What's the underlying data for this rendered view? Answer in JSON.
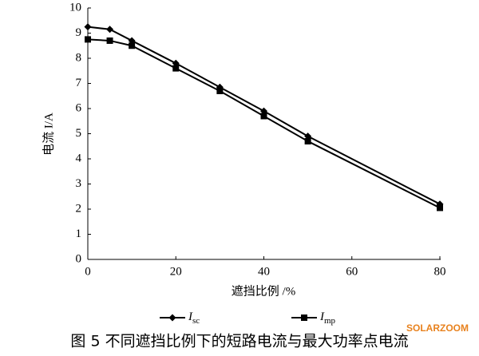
{
  "chart_data": {
    "type": "line",
    "x_label": "遮挡比例 /%",
    "y_label": "电流 I/A",
    "caption": "图 5 不同遮挡比例下的短路电流与最大功率点电流",
    "watermark": "SOLARZOOM",
    "x": [
      0,
      5,
      10,
      20,
      30,
      40,
      50,
      80
    ],
    "series": [
      {
        "name": "Isc",
        "color": "#000000",
        "marker": "diamond",
        "values": [
          9.25,
          9.15,
          8.7,
          7.8,
          6.85,
          5.9,
          4.9,
          2.2
        ]
      },
      {
        "name": "Imp",
        "color": "#000000",
        "marker": "square",
        "values": [
          8.75,
          8.7,
          8.5,
          7.6,
          6.7,
          5.7,
          4.7,
          2.05
        ]
      }
    ],
    "xlim": [
      0,
      80
    ],
    "xticks": [
      0,
      20,
      40,
      60,
      80
    ],
    "ylim": [
      0,
      10
    ],
    "yticks": [
      0,
      1,
      2,
      3,
      4,
      5,
      6,
      7,
      8,
      9,
      10
    ]
  }
}
